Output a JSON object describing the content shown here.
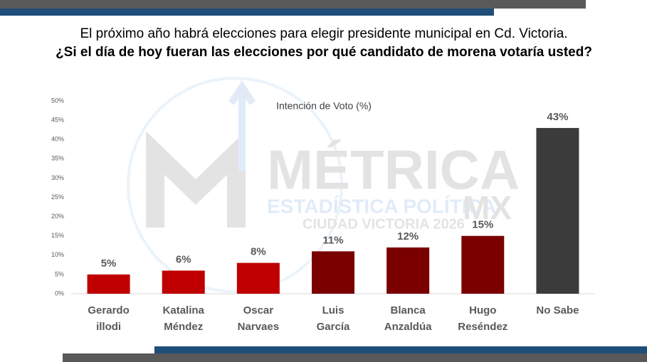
{
  "header": {
    "title": "El próximo año habrá elecciones para elegir presidente municipal en Cd. Victoria.",
    "subtitle": "¿Si el día de hoy fueran las elecciones por qué candidato de morena votaría usted?"
  },
  "watermark": {
    "brand": "MÉTRICA",
    "tagline": "ESTADÍSTICA POLÍTICA",
    "suffix": "MX",
    "place": "CIUDAD VICTORIA 2026"
  },
  "chart_data": {
    "type": "bar",
    "title": "Intención de Voto (%)",
    "categories": [
      [
        "Gerardo",
        "illodi"
      ],
      [
        "Katalina",
        "Méndez"
      ],
      [
        "Oscar",
        "Narvaes"
      ],
      [
        "Luis",
        "García"
      ],
      [
        "Blanca",
        "Anzaldúa"
      ],
      [
        "Hugo",
        "Reséndez"
      ],
      [
        "No Sabe"
      ]
    ],
    "values": [
      5,
      6,
      8,
      11,
      12,
      15,
      43
    ],
    "value_labels": [
      "5%",
      "6%",
      "8%",
      "11%",
      "12%",
      "15%",
      "43%"
    ],
    "colors": [
      "#c00000",
      "#c00000",
      "#c00000",
      "#7a0000",
      "#7a0000",
      "#7a0000",
      "#3b3b3b"
    ],
    "ylim": [
      0,
      50
    ],
    "yticks": [
      {
        "value": 0,
        "label": "0%"
      },
      {
        "value": 5,
        "label": "5%"
      },
      {
        "value": 10,
        "label": "10%"
      },
      {
        "value": 15,
        "label": "15%"
      },
      {
        "value": 20,
        "label": "20%"
      },
      {
        "value": 25,
        "label": "25%"
      },
      {
        "value": 30,
        "label": "30%"
      },
      {
        "value": 35,
        "label": "35%"
      },
      {
        "value": 40,
        "label": "40%"
      },
      {
        "value": 45,
        "label": "45%"
      },
      {
        "value": 50,
        "label": "50%"
      }
    ],
    "grid": false
  }
}
